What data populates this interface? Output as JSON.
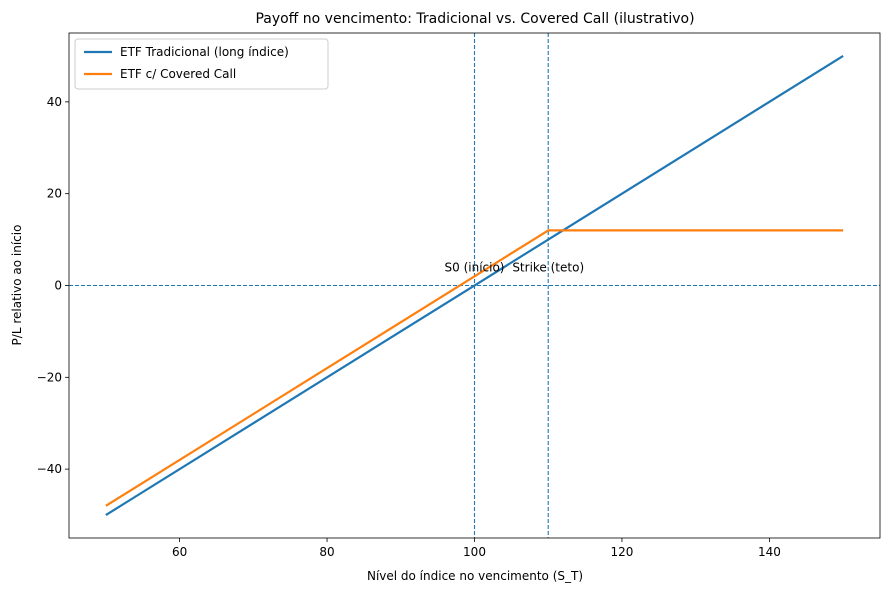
{
  "chart_data": {
    "type": "line",
    "title": "Payoff no vencimento: Tradicional vs. Covered Call (ilustrativo)",
    "xlabel": "Nível do índice no vencimento (S_T)",
    "ylabel": "P/L relativo ao início",
    "xlim": [
      45,
      155
    ],
    "ylim": [
      -55,
      55
    ],
    "xticks": [
      60,
      80,
      100,
      120,
      140
    ],
    "yticks": [
      -40,
      -20,
      0,
      20,
      40
    ],
    "xtick_labels": [
      "60",
      "80",
      "100",
      "120",
      "140"
    ],
    "ytick_labels": [
      "−40",
      "−20",
      "0",
      "20",
      "40"
    ],
    "grid": false,
    "legend_position": "upper-left",
    "series": [
      {
        "name": "ETF Tradicional (long índice)",
        "color": "#1f77b4",
        "x": [
          50,
          150
        ],
        "y": [
          -50,
          50
        ]
      },
      {
        "name": "ETF c/ Covered Call",
        "color": "#ff7f0e",
        "x": [
          50,
          110,
          150
        ],
        "y": [
          -48,
          12,
          12
        ]
      }
    ],
    "reference_lines": [
      {
        "orientation": "vertical",
        "value": 100,
        "color": "#1f77b4",
        "style": "dashed"
      },
      {
        "orientation": "vertical",
        "value": 110,
        "color": "#1f77b4",
        "style": "dashed"
      },
      {
        "orientation": "horizontal",
        "value": 0,
        "color": "#1f77b4",
        "style": "dashed"
      }
    ],
    "annotations": [
      {
        "text": "S0 (início)",
        "x": 100,
        "y": 3
      },
      {
        "text": "Strike (teto)",
        "x": 110,
        "y": 3
      }
    ]
  }
}
